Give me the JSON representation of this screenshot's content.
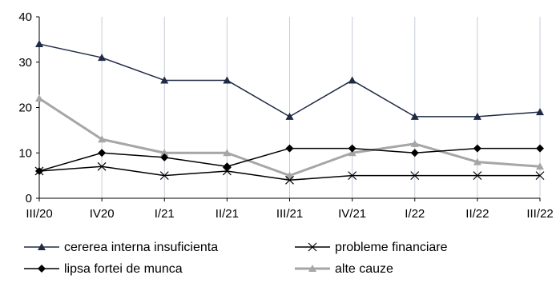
{
  "chart_data": {
    "type": "line",
    "categories": [
      "III/20",
      "IV20",
      "I/21",
      "II/21",
      "III/21",
      "IV/21",
      "I/22",
      "II/22",
      "III/22"
    ],
    "ylim": [
      0,
      40
    ],
    "yticks": [
      0,
      10,
      20,
      30,
      40
    ],
    "grid": "vertical",
    "legend_position": "bottom",
    "series": [
      {
        "name": "cererea interna insuficienta",
        "color": "#1f2a44",
        "marker": "triangle",
        "values": [
          34,
          31,
          26,
          26,
          18,
          26,
          18,
          18,
          19
        ]
      },
      {
        "name": "probleme financiare",
        "color": "#000000",
        "marker": "x",
        "values": [
          6,
          7,
          5,
          6,
          4,
          5,
          5,
          5,
          5
        ]
      },
      {
        "name": "lipsa fortei de munca",
        "color": "#000000",
        "marker": "diamond",
        "values": [
          6,
          10,
          9,
          7,
          11,
          11,
          10,
          11,
          11
        ]
      },
      {
        "name": "alte cauze",
        "color": "#a6a6a6",
        "marker": "triangle",
        "values": [
          22,
          13,
          10,
          10,
          5,
          10,
          12,
          8,
          7
        ]
      }
    ]
  }
}
